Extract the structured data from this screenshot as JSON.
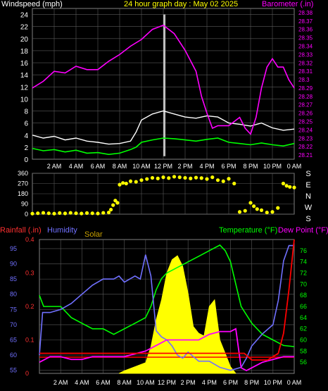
{
  "header": {
    "left_title": "Windspeed (mph)",
    "center_title": "24 hour graph day : May 02 2025",
    "right_title": "Barometer (.in)"
  },
  "colors": {
    "wind_title": "#ffffff",
    "center_title": "#ffff00",
    "baro_title": "#ff00ff",
    "wind_avg": "#00ff00",
    "wind_gust": "#ffffff",
    "gust_spike": "#c0c0c0",
    "barometer": "#ff00ff",
    "direction": "#ffff00",
    "rainfall": "#ff0000",
    "humidity": "#7070ff",
    "solar": "#ffff00",
    "solar_label": "#c8a000",
    "temperature": "#00ff00",
    "dewpoint": "#ff00ff",
    "rain_axis": "#ff3030",
    "temp_axis": "#00ff00",
    "grid": "#5a5a5a",
    "ref_line": "#ff0000"
  },
  "x_tick_labels": [
    "2 AM",
    "4 AM",
    "6 AM",
    "8 AM",
    "10 AM",
    "12 PM",
    "2 PM",
    "4 PM",
    "6 PM",
    "8 PM",
    "10 PM",
    "0 AM"
  ],
  "compass_labels": [
    "S",
    "E",
    "N",
    "W",
    "S"
  ],
  "bottom_legend": {
    "rainfall": "Rainfall (.in)",
    "humidity": "Humidity",
    "solar": "Solar",
    "temperature": "Temperature (°F)",
    "dewpoint": "Dew Point (°F)"
  },
  "chart_data": [
    {
      "type": "line",
      "name": "wind",
      "x_unit": "hours",
      "xlim": [
        0,
        24
      ],
      "wind_ylim": [
        0,
        25
      ],
      "wind_ticks": [
        0,
        2,
        4,
        6,
        8,
        10,
        12,
        14,
        16,
        18,
        20,
        22,
        24
      ],
      "baro_ylim": [
        28.205,
        28.385
      ],
      "baro_ticks": [
        "28.21",
        "28.22",
        "28.23",
        "28.24",
        "28.25",
        "28.26",
        "28.27",
        "28.28",
        "28.29",
        "28.3",
        "28.31",
        "28.32",
        "28.33",
        "28.34",
        "28.35",
        "28.36",
        "28.37",
        "28.38"
      ],
      "wind_avg": [
        [
          0,
          1.8
        ],
        [
          1,
          1.4
        ],
        [
          2,
          1.6
        ],
        [
          3,
          1.2
        ],
        [
          4,
          1.5
        ],
        [
          5,
          1.0
        ],
        [
          6,
          1.1
        ],
        [
          7,
          0.8
        ],
        [
          8,
          1.0
        ],
        [
          9,
          1.6
        ],
        [
          9.5,
          2.0
        ],
        [
          10,
          2.8
        ],
        [
          11,
          3.2
        ],
        [
          12,
          3.5
        ],
        [
          13,
          3.4
        ],
        [
          14,
          3.2
        ],
        [
          15,
          3.0
        ],
        [
          16,
          3.3
        ],
        [
          17,
          3.5
        ],
        [
          18,
          2.8
        ],
        [
          19,
          2.6
        ],
        [
          20,
          2.4
        ],
        [
          21,
          2.7
        ],
        [
          22,
          2.4
        ],
        [
          23,
          2.2
        ],
        [
          24,
          2.6
        ]
      ],
      "wind_gust": [
        [
          0,
          4.0
        ],
        [
          1,
          3.5
        ],
        [
          2,
          3.8
        ],
        [
          3,
          3.2
        ],
        [
          4,
          3.5
        ],
        [
          5,
          3.0
        ],
        [
          6,
          2.8
        ],
        [
          7,
          2.5
        ],
        [
          8,
          2.6
        ],
        [
          9,
          3.0
        ],
        [
          9.5,
          4.5
        ],
        [
          10,
          6.5
        ],
        [
          11,
          7.5
        ],
        [
          12,
          8.0
        ],
        [
          13,
          7.5
        ],
        [
          14,
          7.0
        ],
        [
          15,
          6.8
        ],
        [
          16,
          7.2
        ],
        [
          17,
          7.0
        ],
        [
          18,
          6.0
        ],
        [
          19,
          5.8
        ],
        [
          20,
          5.5
        ],
        [
          21,
          6.0
        ],
        [
          22,
          5.2
        ],
        [
          23,
          4.8
        ],
        [
          24,
          5.0
        ]
      ],
      "gust_spike": {
        "x": 12.1,
        "y": 24
      },
      "barometer": [
        [
          0,
          28.29
        ],
        [
          1,
          28.298
        ],
        [
          2,
          28.31
        ],
        [
          3,
          28.308
        ],
        [
          4,
          28.316
        ],
        [
          5,
          28.312
        ],
        [
          6,
          28.312
        ],
        [
          7,
          28.322
        ],
        [
          8,
          28.33
        ],
        [
          9,
          28.34
        ],
        [
          10,
          28.348
        ],
        [
          11,
          28.36
        ],
        [
          12,
          28.365
        ],
        [
          13,
          28.355
        ],
        [
          14,
          28.335
        ],
        [
          15,
          28.31
        ],
        [
          15.5,
          28.28
        ],
        [
          16,
          28.26
        ],
        [
          16.5,
          28.242
        ],
        [
          17,
          28.245
        ],
        [
          18,
          28.245
        ],
        [
          19,
          28.255
        ],
        [
          19.5,
          28.242
        ],
        [
          20,
          28.235
        ],
        [
          20.5,
          28.255
        ],
        [
          21,
          28.29
        ],
        [
          21.5,
          28.315
        ],
        [
          22,
          28.325
        ],
        [
          22.5,
          28.315
        ],
        [
          23,
          28.315
        ],
        [
          23.5,
          28.3
        ],
        [
          24,
          28.29
        ]
      ]
    },
    {
      "type": "scatter",
      "name": "wind_direction",
      "ylim": [
        0,
        360
      ],
      "y_ticks": [
        0,
        90,
        180,
        270,
        360
      ],
      "points": [
        [
          0,
          5
        ],
        [
          0.5,
          8
        ],
        [
          1,
          12
        ],
        [
          1.5,
          8
        ],
        [
          2,
          5
        ],
        [
          2.5,
          10
        ],
        [
          3,
          7
        ],
        [
          3.5,
          12
        ],
        [
          4,
          8
        ],
        [
          4.5,
          6
        ],
        [
          5,
          10
        ],
        [
          5.5,
          8
        ],
        [
          6,
          6
        ],
        [
          6.5,
          12
        ],
        [
          7,
          15
        ],
        [
          7.2,
          40
        ],
        [
          7.4,
          80
        ],
        [
          7.6,
          120
        ],
        [
          7.8,
          100
        ],
        [
          8,
          260
        ],
        [
          8.3,
          275
        ],
        [
          8.6,
          270
        ],
        [
          9,
          290
        ],
        [
          9.5,
          285
        ],
        [
          10,
          300
        ],
        [
          10.5,
          310
        ],
        [
          11,
          320
        ],
        [
          11.5,
          315
        ],
        [
          12,
          325
        ],
        [
          12.5,
          318
        ],
        [
          13,
          330
        ],
        [
          13.5,
          325
        ],
        [
          14,
          320
        ],
        [
          14.5,
          315
        ],
        [
          15,
          322
        ],
        [
          15.5,
          318
        ],
        [
          16,
          310
        ],
        [
          16.5,
          325
        ],
        [
          17,
          300
        ],
        [
          17.5,
          290
        ],
        [
          18,
          312
        ],
        [
          18.5,
          270
        ],
        [
          19,
          20
        ],
        [
          19.5,
          30
        ],
        [
          20,
          100
        ],
        [
          20.3,
          70
        ],
        [
          20.6,
          45
        ],
        [
          21,
          35
        ],
        [
          21.5,
          15
        ],
        [
          22,
          20
        ],
        [
          22.5,
          55
        ],
        [
          23,
          270
        ],
        [
          23.3,
          250
        ],
        [
          23.6,
          240
        ],
        [
          24,
          235
        ]
      ]
    },
    {
      "type": "line",
      "name": "climate",
      "humidity_ylim": [
        54,
        98
      ],
      "humidity_ticks": [
        55,
        60,
        65,
        70,
        75,
        80,
        85,
        90,
        95
      ],
      "rain_ylim": [
        0,
        0.4
      ],
      "rain_ticks": [
        "0",
        "0.1",
        "0.2",
        "0.3",
        "0.4"
      ],
      "temp_ylim": [
        54,
        78
      ],
      "temp_ticks": [
        56,
        58,
        60,
        62,
        64,
        66,
        68,
        70,
        72,
        74,
        76
      ],
      "humidity": [
        [
          0,
          60
        ],
        [
          0.3,
          74
        ],
        [
          1,
          74
        ],
        [
          2,
          75
        ],
        [
          3,
          77
        ],
        [
          4,
          80
        ],
        [
          5,
          83
        ],
        [
          6,
          85
        ],
        [
          7,
          85
        ],
        [
          7.5,
          86
        ],
        [
          8,
          84
        ],
        [
          9,
          86
        ],
        [
          9.5,
          85
        ],
        [
          10,
          93
        ],
        [
          10.5,
          86
        ],
        [
          11,
          68
        ],
        [
          11.5,
          66
        ],
        [
          12,
          65
        ],
        [
          12.5,
          63
        ],
        [
          13,
          60
        ],
        [
          13.5,
          59
        ],
        [
          14,
          61
        ],
        [
          15,
          58
        ],
        [
          16,
          58
        ],
        [
          17,
          56
        ],
        [
          18,
          55
        ],
        [
          19,
          56
        ],
        [
          19.5,
          59
        ],
        [
          20,
          63
        ],
        [
          21,
          67
        ],
        [
          22,
          70
        ],
        [
          22.5,
          78
        ],
        [
          23,
          91
        ],
        [
          23.5,
          96
        ],
        [
          24,
          96
        ]
      ],
      "temperature": [
        [
          0,
          68
        ],
        [
          0.4,
          66
        ],
        [
          1,
          66
        ],
        [
          2,
          66
        ],
        [
          3,
          64
        ],
        [
          4,
          63
        ],
        [
          5,
          62
        ],
        [
          6,
          62
        ],
        [
          7,
          61
        ],
        [
          8,
          62
        ],
        [
          9,
          63
        ],
        [
          10,
          64
        ],
        [
          10.5,
          66
        ],
        [
          11,
          69
        ],
        [
          11.5,
          71
        ],
        [
          12,
          72
        ],
        [
          13,
          73
        ],
        [
          14,
          74
        ],
        [
          15,
          75
        ],
        [
          16,
          76
        ],
        [
          17,
          77
        ],
        [
          17.5,
          76
        ],
        [
          18,
          74
        ],
        [
          18.5,
          70
        ],
        [
          19,
          66
        ],
        [
          20,
          63
        ],
        [
          21,
          61
        ],
        [
          22,
          60
        ],
        [
          23,
          59
        ],
        [
          24,
          58.8
        ]
      ],
      "dewpoint": [
        [
          0,
          56
        ],
        [
          1,
          57
        ],
        [
          2,
          57
        ],
        [
          3,
          56.5
        ],
        [
          4,
          56.5
        ],
        [
          5,
          57
        ],
        [
          6,
          57
        ],
        [
          7,
          57
        ],
        [
          8,
          57
        ],
        [
          9,
          57.5
        ],
        [
          10,
          58
        ],
        [
          11,
          59
        ],
        [
          12,
          60
        ],
        [
          13,
          60
        ],
        [
          14,
          60
        ],
        [
          15,
          60
        ],
        [
          16,
          61
        ],
        [
          17,
          61.5
        ],
        [
          18,
          61.5
        ],
        [
          18.5,
          62
        ],
        [
          19,
          55
        ],
        [
          19.5,
          54.5
        ],
        [
          20,
          55
        ],
        [
          21,
          56
        ],
        [
          22,
          56.5
        ],
        [
          23,
          57
        ],
        [
          24,
          57
        ]
      ],
      "rainfall": [
        [
          0,
          0.06
        ],
        [
          19.3,
          0.06
        ],
        [
          20,
          0.04
        ],
        [
          21.5,
          0.04
        ],
        [
          22,
          0.05
        ],
        [
          22.5,
          0.06
        ],
        [
          23,
          0.12
        ],
        [
          23.5,
          0.25
        ],
        [
          24,
          0.4
        ]
      ],
      "solar": [
        [
          7.5,
          0
        ],
        [
          8,
          0.02
        ],
        [
          9,
          0.05
        ],
        [
          10,
          0.08
        ],
        [
          10.5,
          0.2
        ],
        [
          11,
          0.4
        ],
        [
          11.5,
          0.55
        ],
        [
          12,
          0.75
        ],
        [
          12.5,
          0.85
        ],
        [
          13,
          0.88
        ],
        [
          13.5,
          0.8
        ],
        [
          14,
          0.6
        ],
        [
          14.5,
          0.35
        ],
        [
          15,
          0.3
        ],
        [
          15.5,
          0.28
        ],
        [
          16,
          0.5
        ],
        [
          16.5,
          0.55
        ],
        [
          17,
          0.25
        ],
        [
          17.5,
          0.15
        ],
        [
          18,
          0.05
        ],
        [
          18.5,
          0.0
        ]
      ]
    }
  ]
}
